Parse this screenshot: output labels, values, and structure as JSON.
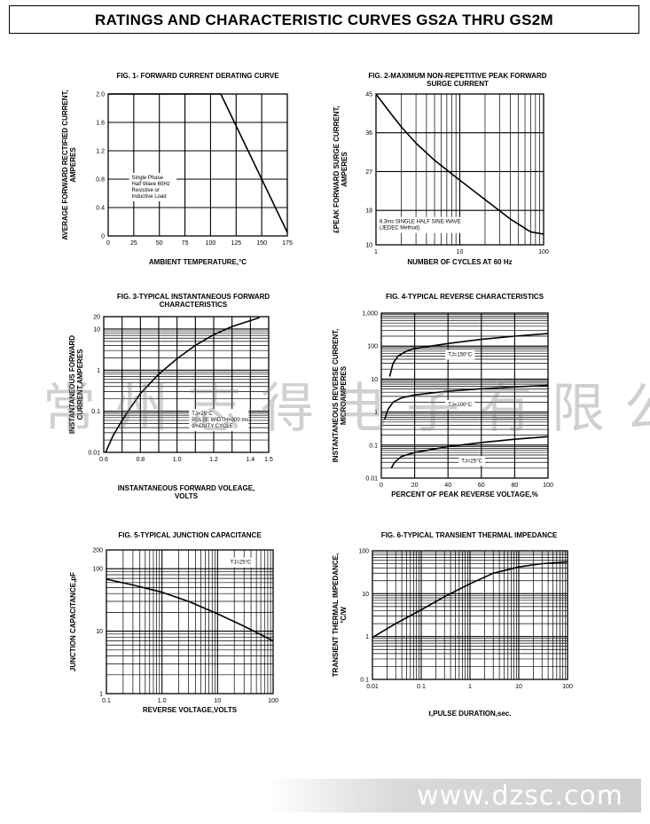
{
  "page": {
    "title": "RATINGS AND CHARACTERISTIC CURVES GS2A THRU GS2M",
    "watermark_cn": "常州志得电子有限公司",
    "watermark_url": "www.dzsc.com"
  },
  "chart_data": [
    {
      "id": "fig1",
      "type": "line",
      "title": "FIG. 1- FORWARD CURRENT DERATING CURVE",
      "xlabel": "AMBIENT TEMPERATURE,°C",
      "ylabel": [
        "AVERAGE FORWARD RECTIFIED CURRENT,",
        "AMPERES"
      ],
      "xscale": "linear",
      "yscale": "linear",
      "xlim": [
        0,
        175
      ],
      "ylim": [
        0,
        2.0
      ],
      "xticks": [
        0,
        25,
        50,
        75,
        100,
        125,
        150,
        175
      ],
      "xticklabels": [
        "0",
        "25",
        "50",
        "75",
        "100",
        "125",
        "150",
        "175"
      ],
      "yticks": [
        0,
        0.4,
        0.8,
        1.2,
        1.6,
        2.0
      ],
      "yticklabels": [
        "0",
        "0.4",
        "0.8",
        "1.2",
        "1.6",
        "2.0"
      ],
      "grid_x": [
        25,
        50,
        75,
        100,
        125,
        150
      ],
      "grid_y": [
        0.4,
        0.8,
        1.2,
        1.6
      ],
      "series": [
        {
          "x": [
            0,
            110,
            175
          ],
          "y": [
            2.0,
            2.0,
            0.05
          ]
        }
      ],
      "annotations": [
        {
          "x": 23,
          "y": 0.8,
          "lines": [
            "Single Phase",
            "Half Wave 60Hz",
            "Resistive or",
            "Inductive Load"
          ]
        }
      ]
    },
    {
      "id": "fig2",
      "type": "line",
      "title": "FIG. 2-MAXIMUM NON-REPETITIVE PEAK FORWARD SURGE CURRENT",
      "title_lines": [
        "FIG. 2-MAXIMUM NON-REPETITIVE PEAK FORWARD",
        "SURGE CURRENT"
      ],
      "xlabel": "NUMBER OF CYCLES AT 60 Hz",
      "ylabel": [
        "£PEAK  FORWARD SURGE CURRENT,",
        "AMPERES"
      ],
      "xscale": "log",
      "yscale": "linear",
      "xlim": [
        1,
        100
      ],
      "ylim": [
        10,
        45
      ],
      "xticks": [
        1,
        10,
        100
      ],
      "xticklabels": [
        "1",
        "10",
        "100"
      ],
      "yticks": [
        10,
        18,
        27,
        36,
        45
      ],
      "yticklabels": [
        "10",
        "18",
        "27",
        "36",
        "45"
      ],
      "grid_y": [
        18,
        27,
        36
      ],
      "series": [
        {
          "x": [
            1,
            1.5,
            2,
            3,
            5,
            10,
            20,
            40,
            70,
            100
          ],
          "y": [
            45,
            40.5,
            37.4,
            33.6,
            29.6,
            25,
            20.5,
            16,
            13,
            12.5
          ]
        }
      ],
      "annotations": [
        {
          "x": 1.1,
          "y": 15,
          "lines": [
            "8.3ms SINGLE HALF SINE-WAVE",
            "(JEDEC Method)"
          ]
        }
      ]
    },
    {
      "id": "fig3",
      "type": "line",
      "title": "FIG. 3-TYPICAL INSTANTANEOUS FORWARD CHARACTERISTICS",
      "title_lines": [
        "FIG. 3-TYPICAL INSTANTANEOUS FORWARD",
        "CHARACTERISTICS"
      ],
      "xlabel": [
        "INSTANTANEOUS FORWARD VOLEAGE,",
        "VOLTS"
      ],
      "ylabel": [
        "INSTANTANEOUS FORWARD",
        "CURRENT,AMPERES"
      ],
      "xscale": "linear",
      "yscale": "log",
      "xlim": [
        0.6,
        1.5
      ],
      "ylim": [
        0.01,
        20
      ],
      "xticks": [
        0.6,
        0.8,
        1.0,
        1.2,
        1.4,
        1.5
      ],
      "xticklabels": [
        "0.6",
        "0.8",
        "1.0",
        "1.2",
        "1.4",
        "1.5"
      ],
      "yticks": [
        0.01,
        0.1,
        1,
        10,
        20
      ],
      "yticklabels": [
        "0.01",
        "0.1",
        "1",
        "10",
        "20"
      ],
      "grid_x": [
        0.7,
        0.8,
        0.9,
        1.0,
        1.1,
        1.2,
        1.3,
        1.4
      ],
      "series": [
        {
          "x": [
            0.61,
            0.65,
            0.7,
            0.75,
            0.8,
            0.9,
            1.0,
            1.1,
            1.2,
            1.3,
            1.4,
            1.45
          ],
          "y": [
            0.01,
            0.025,
            0.06,
            0.13,
            0.27,
            0.8,
            1.9,
            4,
            7.3,
            11.5,
            16,
            19
          ]
        }
      ],
      "annotations": [
        {
          "x": 1.08,
          "y": 0.08,
          "lines": [
            "TJ=25°C",
            "PULSE WIDTH=300 ms",
            "1%DUTY CYCLE"
          ]
        }
      ]
    },
    {
      "id": "fig4",
      "type": "line",
      "title": "FIG. 4-TYPICAL REVERSE CHARACTERISTICS",
      "xlabel": "PERCENT OF PEAK REVERSE VOLTAGE,%",
      "ylabel": [
        "INSTANTANEOUS REVERSE CURRENT,",
        "MICROAMPERES"
      ],
      "xscale": "linear",
      "yscale": "log",
      "xlim": [
        0,
        100
      ],
      "ylim": [
        0.01,
        1000
      ],
      "xticks": [
        0,
        20,
        40,
        60,
        80,
        100
      ],
      "xticklabels": [
        "0",
        "20",
        "40",
        "60",
        "80",
        "100"
      ],
      "yticks": [
        0.01,
        0.1,
        1,
        10,
        100,
        1000
      ],
      "yticklabels": [
        "0.01",
        "0.1",
        "1",
        "10",
        "100",
        "1,000"
      ],
      "grid_x": [
        20,
        40,
        60,
        80
      ],
      "series": [
        {
          "name": "TJ=150°C",
          "x": [
            5,
            7,
            10,
            15,
            20,
            40,
            60,
            80,
            100
          ],
          "y": [
            12,
            30,
            50,
            70,
            85,
            120,
            160,
            200,
            240
          ]
        },
        {
          "name": "TJ=100°C",
          "x": [
            2,
            4,
            7,
            12,
            20,
            40,
            60,
            80,
            100
          ],
          "y": [
            0.6,
            1.2,
            2,
            2.7,
            3.3,
            4.3,
            5.1,
            5.8,
            6.4
          ]
        },
        {
          "name": "TJ=25°C",
          "x": [
            6,
            8,
            12,
            20,
            40,
            60,
            80,
            100
          ],
          "y": [
            0.02,
            0.03,
            0.045,
            0.06,
            0.09,
            0.12,
            0.15,
            0.18
          ]
        }
      ],
      "annotations": [
        {
          "x": 40,
          "y": 50,
          "lines": [
            "TJ=150°C"
          ]
        },
        {
          "x": 40,
          "y": 1.5,
          "lines": [
            "TJ=100°C"
          ]
        },
        {
          "x": 48,
          "y": 0.03,
          "lines": [
            "TJ=25°C"
          ]
        }
      ]
    },
    {
      "id": "fig5",
      "type": "line",
      "title": "FIG. 5-TYPICAL JUNCTION CAPACITANCE",
      "xlabel": "REVERSE VOLTAGE,VOLTS",
      "ylabel": [
        "JUNCTION CAPACITANCE,pF"
      ],
      "xscale": "log",
      "yscale": "log",
      "xlim": [
        0.1,
        100
      ],
      "ylim": [
        1,
        200
      ],
      "xticks": [
        0.1,
        1,
        10,
        100
      ],
      "xticklabels": [
        "0.1",
        "1.0",
        "10",
        "100"
      ],
      "yticks": [
        1,
        10,
        100,
        200
      ],
      "yticklabels": [
        "1",
        "10",
        "100",
        "200"
      ],
      "series": [
        {
          "x": [
            0.1,
            0.3,
            1,
            3,
            10,
            30,
            100
          ],
          "y": [
            68,
            55,
            42,
            30,
            19,
            12,
            7
          ]
        }
      ],
      "annotations": [
        {
          "x": 17,
          "y": 120,
          "lines": [
            "TJ=25°C"
          ]
        }
      ]
    },
    {
      "id": "fig6",
      "type": "line",
      "title": "FIG. 6-TYPICAL TRANSIENT THERMAL IMPEDANCE",
      "xlabel": "t,PULSE DURATION,sec.",
      "ylabel": [
        "TRANSIENT THERMAL IMPEDANCE,",
        "°C/W"
      ],
      "xscale": "log",
      "yscale": "log",
      "xlim": [
        0.01,
        100
      ],
      "ylim": [
        0.1,
        100
      ],
      "xticks": [
        0.01,
        0.1,
        1,
        10,
        100
      ],
      "xticklabels": [
        "0.01",
        "0.1",
        "1",
        "10",
        "100"
      ],
      "yticks": [
        0.1,
        1,
        10,
        100
      ],
      "yticklabels": [
        "0.1",
        "1",
        "10",
        "100"
      ],
      "series": [
        {
          "x": [
            0.01,
            0.03,
            0.1,
            0.3,
            1,
            3,
            10,
            30,
            100
          ],
          "y": [
            0.95,
            2,
            4.2,
            8.5,
            17,
            30,
            42,
            50,
            55
          ]
        }
      ],
      "annotations": []
    }
  ]
}
